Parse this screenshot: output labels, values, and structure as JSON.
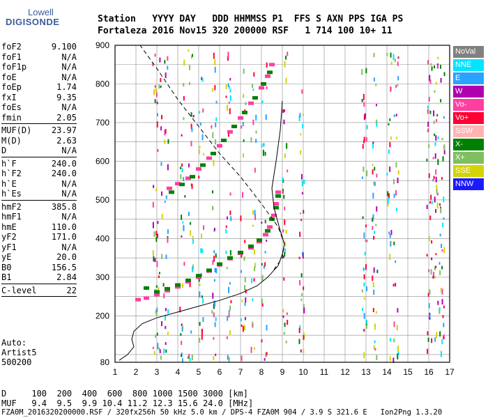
{
  "logo": {
    "top": "Lowell",
    "main": "DIGISONDE"
  },
  "header": {
    "row1": "Station   YYYY DAY   DDD HHMMSS P1  FFS S AXN PPS IGA PS",
    "row2": "Fortaleza 2016 Nov15 320 200000 RSF   1 714 100 10+ 11"
  },
  "params": {
    "group1": [
      {
        "label": "foF2",
        "value": "9.100"
      },
      {
        "label": "foF1",
        "value": "N/A"
      },
      {
        "label": "foF1p",
        "value": "N/A"
      },
      {
        "label": "foE",
        "value": "N/A"
      },
      {
        "label": "foEp",
        "value": "1.74"
      },
      {
        "label": "fxI",
        "value": "9.35"
      },
      {
        "label": "foEs",
        "value": "N/A"
      },
      {
        "label": "fmin",
        "value": "2.05"
      }
    ],
    "group2": [
      {
        "label": "MUF(D)",
        "value": "23.97"
      },
      {
        "label": "M(D)",
        "value": "2.63"
      },
      {
        "label": "D",
        "value": "N/A"
      }
    ],
    "group3": [
      {
        "label": "h`F",
        "value": "240.0"
      },
      {
        "label": "h`F2",
        "value": "240.0"
      },
      {
        "label": "h`E",
        "value": "N/A"
      },
      {
        "label": "h`Es",
        "value": "N/A"
      }
    ],
    "group4": [
      {
        "label": "hmF2",
        "value": "385.8"
      },
      {
        "label": "hmF1",
        "value": "N/A"
      },
      {
        "label": "hmE",
        "value": "110.0"
      },
      {
        "label": "yF2",
        "value": "171.0"
      },
      {
        "label": "yF1",
        "value": "N/A"
      },
      {
        "label": "yE",
        "value": "20.0"
      },
      {
        "label": "B0",
        "value": "156.5"
      },
      {
        "label": "B1",
        "value": "2.84"
      }
    ],
    "group5": [
      {
        "label": "C-level",
        "value": "22"
      }
    ]
  },
  "auto": {
    "line1": "Auto:",
    "line2": "Artist5",
    "line3": "500200"
  },
  "legend": [
    {
      "label": "NoVal",
      "color": "#808080"
    },
    {
      "label": "NNE",
      "color": "#00e5ff"
    },
    {
      "label": "E",
      "color": "#29a3ff"
    },
    {
      "label": "W",
      "color": "#b000b0"
    },
    {
      "label": "Vo-",
      "color": "#ff3fa0"
    },
    {
      "label": "Vo+",
      "color": "#ff0033"
    },
    {
      "label": "SSW",
      "color": "#ffb3b3"
    },
    {
      "label": "X-",
      "color": "#008000"
    },
    {
      "label": "X+",
      "color": "#7fbf5f"
    },
    {
      "label": "SSE",
      "color": "#d4d400"
    },
    {
      "label": "NNW",
      "color": "#1a1aff"
    }
  ],
  "footer": {
    "line1": "D     100  200  400  600  800 1000 1500 3000 [km]",
    "line2": "MUF   9.4  9.5  9.9 10.4 11.2 12.3 15.6 24.0 [MHz]",
    "line3": "FZA0M_2016320200000.RSF / 320fx256h 50 kHz 5.0 km / DPS-4 FZA0M 904 / 3.9 S 321.6 E   Ion2Png 1.3.20"
  },
  "chart_data": {
    "type": "scatter",
    "xlim": [
      1,
      17
    ],
    "ylim": [
      80,
      900
    ],
    "xticks": [
      "1",
      "2",
      "3",
      "4",
      "5",
      "6",
      "7",
      "8",
      "9",
      "10",
      "11",
      "12",
      "13",
      "14",
      "15",
      "16",
      "17"
    ],
    "yticks": [
      "80",
      "200",
      "300",
      "400",
      "500",
      "600",
      "700",
      "800",
      "900"
    ],
    "series": [
      {
        "color": "#ff3fa0",
        "points": [
          [
            2.1,
            242
          ],
          [
            2.5,
            246
          ],
          [
            3.0,
            255
          ],
          [
            3.5,
            265
          ],
          [
            4.0,
            275
          ],
          [
            4.5,
            288
          ],
          [
            5.0,
            300
          ],
          [
            5.5,
            316
          ],
          [
            6.0,
            332
          ],
          [
            6.5,
            348
          ],
          [
            7.0,
            362
          ],
          [
            7.5,
            376
          ],
          [
            7.9,
            392
          ],
          [
            8.2,
            410
          ],
          [
            8.4,
            430
          ],
          [
            8.6,
            460
          ],
          [
            8.7,
            490
          ],
          [
            8.8,
            520
          ]
        ]
      },
      {
        "color": "#008000",
        "points": [
          [
            2.5,
            272
          ],
          [
            3.0,
            262
          ],
          [
            3.5,
            270
          ],
          [
            4.0,
            280
          ],
          [
            4.5,
            292
          ],
          [
            5.0,
            304
          ],
          [
            5.5,
            318
          ],
          [
            6.0,
            334
          ],
          [
            6.5,
            350
          ],
          [
            7.0,
            364
          ],
          [
            7.5,
            380
          ],
          [
            7.9,
            396
          ],
          [
            8.3,
            420
          ],
          [
            8.5,
            450
          ],
          [
            8.7,
            480
          ],
          [
            8.8,
            510
          ]
        ]
      },
      {
        "color": "#ff3fa0",
        "points": [
          [
            3.6,
            530
          ],
          [
            4.0,
            542
          ],
          [
            4.5,
            556
          ],
          [
            5.0,
            580
          ],
          [
            5.5,
            608
          ],
          [
            6.0,
            640
          ],
          [
            6.5,
            676
          ],
          [
            7.0,
            712
          ],
          [
            7.5,
            750
          ],
          [
            8.0,
            790
          ],
          [
            8.3,
            820
          ],
          [
            8.5,
            850
          ]
        ]
      },
      {
        "color": "#008000",
        "points": [
          [
            3.7,
            520
          ],
          [
            4.2,
            540
          ],
          [
            4.7,
            560
          ],
          [
            5.2,
            590
          ],
          [
            5.7,
            620
          ],
          [
            6.2,
            654
          ],
          [
            6.7,
            690
          ],
          [
            7.2,
            726
          ],
          [
            7.7,
            764
          ],
          [
            8.1,
            800
          ],
          [
            8.4,
            830
          ]
        ]
      }
    ],
    "profile_solid": [
      [
        1.2,
        85
      ],
      [
        1.6,
        100
      ],
      [
        1.9,
        120
      ],
      [
        1.8,
        140
      ],
      [
        1.9,
        160
      ],
      [
        2.3,
        180
      ],
      [
        3.0,
        195
      ],
      [
        4.0,
        210
      ],
      [
        5.0,
        225
      ],
      [
        6.0,
        240
      ],
      [
        7.0,
        258
      ],
      [
        7.8,
        278
      ],
      [
        8.3,
        300
      ],
      [
        8.8,
        330
      ],
      [
        9.0,
        360
      ],
      [
        9.1,
        386
      ],
      [
        8.9,
        420
      ],
      [
        8.6,
        480
      ],
      [
        8.5,
        530
      ],
      [
        8.7,
        600
      ],
      [
        8.9,
        680
      ],
      [
        9.0,
        756
      ]
    ],
    "profile_dashed": [
      [
        1.5,
        900
      ],
      [
        2.2,
        900
      ],
      [
        3.0,
        840
      ],
      [
        4.0,
        760
      ],
      [
        5.0,
        690
      ],
      [
        6.0,
        620
      ],
      [
        7.0,
        560
      ],
      [
        8.0,
        490
      ],
      [
        8.8,
        430
      ],
      [
        9.1,
        386
      ],
      [
        9.0,
        350
      ],
      [
        8.6,
        320
      ]
    ]
  }
}
